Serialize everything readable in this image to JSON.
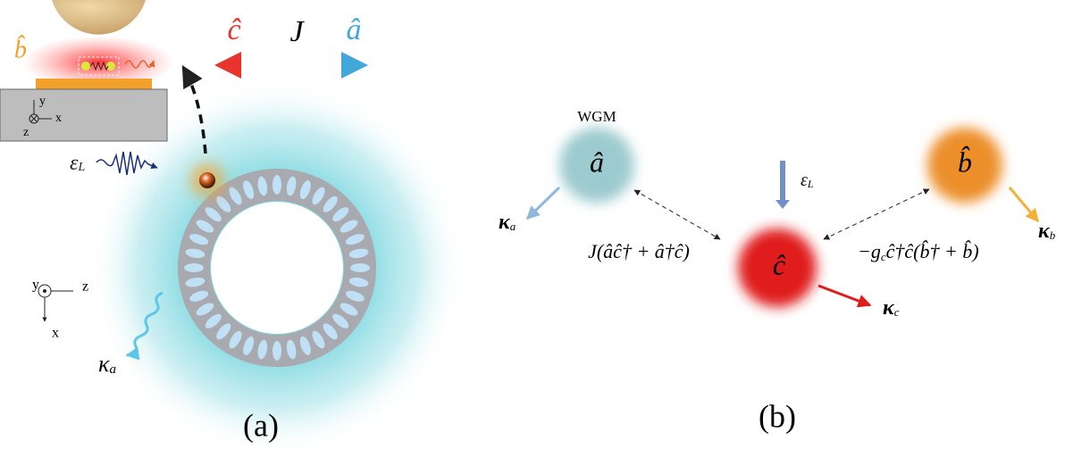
{
  "panel_a": {
    "label": "(a)",
    "c_hat": "ĉ",
    "coupling": "J",
    "a_hat": "â",
    "b_hat": "b̂",
    "inset_axes": [
      "y",
      "x",
      "z"
    ],
    "drive": {
      "symbol": "ε",
      "sub": "L"
    },
    "axes": [
      "y",
      "z",
      "x"
    ],
    "loss": {
      "symbol": "κ",
      "sub": "a"
    }
  },
  "panel_b": {
    "label": "(b)",
    "mode_name": "WGM",
    "nodes": [
      {
        "label": "â",
        "loss": {
          "symbol": "κ",
          "sub": "a"
        }
      },
      {
        "label": "ĉ",
        "loss": {
          "symbol": "κ",
          "sub": "c"
        }
      },
      {
        "label": "b̂",
        "loss": {
          "symbol": "κ",
          "sub": "b"
        }
      }
    ],
    "drive": {
      "symbol": "ε",
      "sub": "L"
    },
    "couplings": [
      {
        "text": "J(âĉ† + â†ĉ)"
      },
      {
        "pre": "−g",
        "sub": "c",
        "post": "ĉ†ĉ(b̂† + b̂)"
      }
    ]
  }
}
